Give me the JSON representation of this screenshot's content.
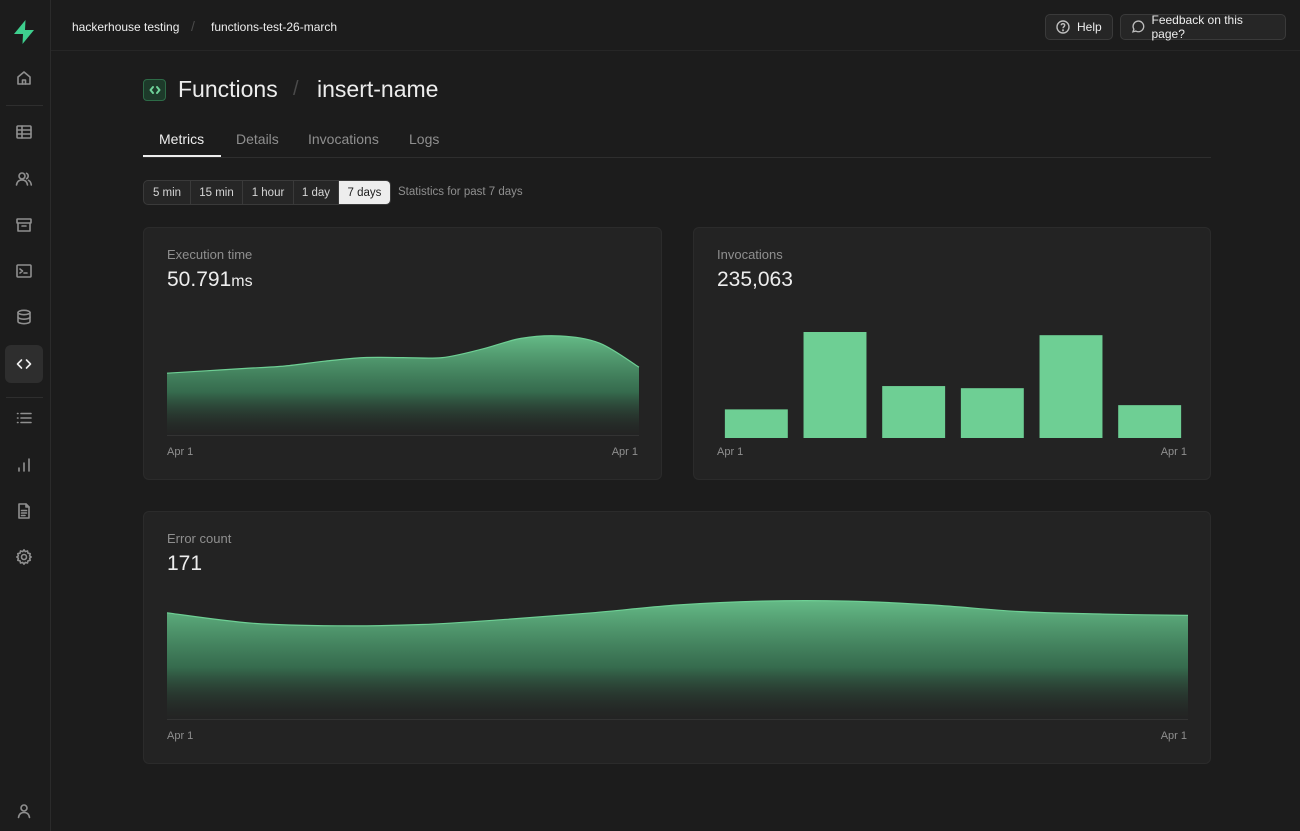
{
  "breadcrumb": {
    "org": "hackerhouse testing",
    "project": "functions-test-26-march"
  },
  "topbar": {
    "help_label": "Help",
    "feedback_label": "Feedback on this page?"
  },
  "sidebar": {
    "items": [
      {
        "icon": "home-icon"
      },
      {
        "icon": "table-editor-icon"
      },
      {
        "icon": "users-icon"
      },
      {
        "icon": "storage-archive-icon"
      },
      {
        "icon": "terminal-icon"
      },
      {
        "icon": "database-icon"
      },
      {
        "icon": "code-icon",
        "active": true
      },
      {
        "icon": "list-icon"
      },
      {
        "icon": "bar-chart-icon"
      },
      {
        "icon": "document-icon"
      },
      {
        "icon": "settings-icon"
      },
      {
        "icon": "user-icon"
      }
    ]
  },
  "page": {
    "section": "Functions",
    "function_name": "insert-name"
  },
  "tabs": [
    {
      "label": "Metrics",
      "active": true
    },
    {
      "label": "Details"
    },
    {
      "label": "Invocations"
    },
    {
      "label": "Logs"
    }
  ],
  "interval": {
    "options": [
      "5 min",
      "15 min",
      "1 hour",
      "1 day",
      "7 days"
    ],
    "selected": "7 days",
    "note": "Statistics for past 7 days"
  },
  "colors": {
    "accent": "#6ecf94",
    "background": "#1c1c1c",
    "card": "#232323"
  },
  "cards": {
    "execution_time": {
      "label": "Execution time",
      "value": "50.791",
      "unit": "ms"
    },
    "invocations": {
      "label": "Invocations",
      "value": "235,063"
    },
    "error_count": {
      "label": "Error count",
      "value": "171"
    }
  },
  "chart_data": [
    {
      "type": "area",
      "x_ticks": [
        "Apr 1",
        "Apr 1"
      ],
      "values": [
        0.54,
        0.56,
        0.58,
        0.6,
        0.64,
        0.67,
        0.67,
        0.67,
        0.74,
        0.83,
        0.85,
        0.79,
        0.59
      ],
      "ylim": [
        0,
        1
      ],
      "grid": false
    },
    {
      "type": "bar",
      "x_ticks": [
        "Apr 1",
        "Apr 1"
      ],
      "values": [
        0.27,
        1.0,
        0.49,
        0.47,
        0.97,
        0.31
      ],
      "ylim": [
        0,
        1
      ],
      "grid": false
    },
    {
      "type": "area",
      "x_ticks": [
        "Apr 1",
        "Apr 1"
      ],
      "values": [
        0.84,
        0.76,
        0.74,
        0.75,
        0.79,
        0.84,
        0.9,
        0.93,
        0.93,
        0.9,
        0.85,
        0.83,
        0.82
      ],
      "ylim": [
        0,
        1
      ],
      "grid": false
    }
  ]
}
